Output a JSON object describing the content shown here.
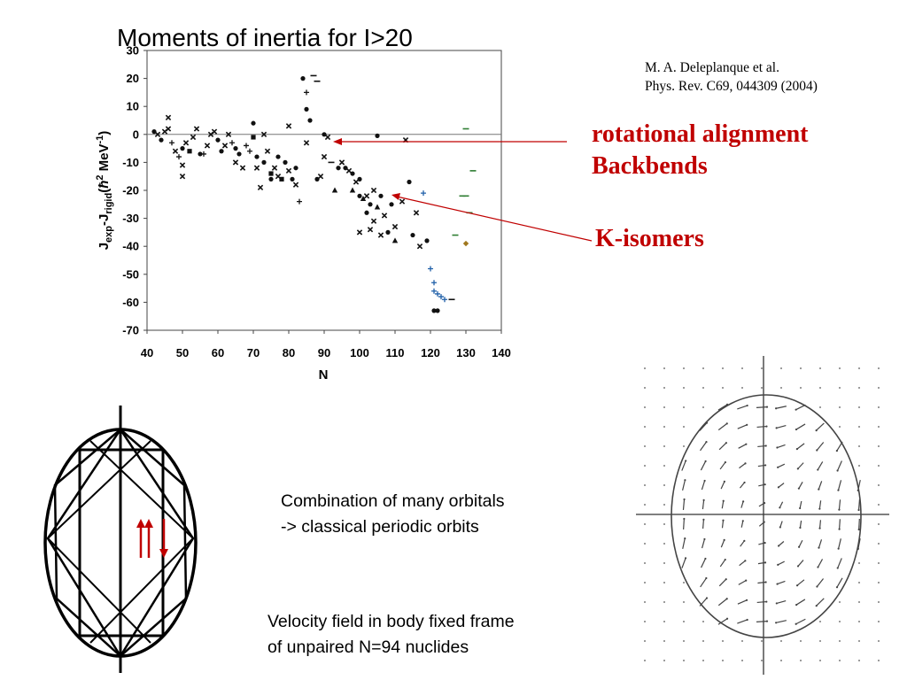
{
  "title": "Moments of inertia for I>20",
  "citation": {
    "line1": "M. A. Deleplanque et al.",
    "line2": "Phys. Rev. C69, 044309 (2004)"
  },
  "annotations": {
    "rotational_line1": "rotational alignment",
    "rotational_line2": "Backbends",
    "k_isomers": "K-isomers",
    "color": "#c00000"
  },
  "captions": {
    "orbits_line1": "Combination of many orbitals",
    "orbits_line2": "-> classical periodic orbits",
    "velocity_line1": "Velocity field in body fixed frame",
    "velocity_line2": "of unpaired N=94 nuclides"
  },
  "chart_data": {
    "type": "scatter",
    "xlabel": "N",
    "ylabel_parts": {
      "j": "J",
      "exp": "exp",
      "dash": "-J",
      "rigid": "rigid",
      "units_open": "(",
      "hbar": "ħ",
      "sup2": "2",
      "mev": " MeV",
      "sup_neg1": "-1",
      "units_close": ")"
    },
    "xlim": [
      40,
      140
    ],
    "ylim": [
      -70,
      30
    ],
    "xticks": [
      40,
      50,
      60,
      70,
      80,
      90,
      100,
      110,
      120,
      130,
      140
    ],
    "yticks": [
      30,
      20,
      10,
      0,
      -10,
      -20,
      -30,
      -40,
      -50,
      -60,
      -70
    ],
    "reference_line_y": 0,
    "points": [
      {
        "x": 42,
        "y": 1,
        "m": "dot"
      },
      {
        "x": 43,
        "y": 0,
        "m": "x"
      },
      {
        "x": 44,
        "y": -2,
        "m": "dot"
      },
      {
        "x": 45,
        "y": 1,
        "m": "x"
      },
      {
        "x": 46,
        "y": 6,
        "m": "x"
      },
      {
        "x": 46,
        "y": 2,
        "m": "x"
      },
      {
        "x": 47,
        "y": -3,
        "m": "plus"
      },
      {
        "x": 48,
        "y": -6,
        "m": "x"
      },
      {
        "x": 49,
        "y": -8,
        "m": "plus"
      },
      {
        "x": 50,
        "y": -5,
        "m": "dot"
      },
      {
        "x": 50,
        "y": -11,
        "m": "x"
      },
      {
        "x": 50,
        "y": -15,
        "m": "x"
      },
      {
        "x": 51,
        "y": -3,
        "m": "x"
      },
      {
        "x": 52,
        "y": -6,
        "m": "sq"
      },
      {
        "x": 53,
        "y": -1,
        "m": "x"
      },
      {
        "x": 54,
        "y": 2,
        "m": "x"
      },
      {
        "x": 55,
        "y": -7,
        "m": "dot"
      },
      {
        "x": 56,
        "y": -7,
        "m": "plus"
      },
      {
        "x": 57,
        "y": -4,
        "m": "x"
      },
      {
        "x": 58,
        "y": 0,
        "m": "x"
      },
      {
        "x": 59,
        "y": 1,
        "m": "x"
      },
      {
        "x": 60,
        "y": -2,
        "m": "dot"
      },
      {
        "x": 61,
        "y": -6,
        "m": "dot"
      },
      {
        "x": 62,
        "y": -4,
        "m": "x"
      },
      {
        "x": 63,
        "y": 0,
        "m": "x"
      },
      {
        "x": 64,
        "y": -3,
        "m": "plus"
      },
      {
        "x": 65,
        "y": -5,
        "m": "dot"
      },
      {
        "x": 65,
        "y": -10,
        "m": "x"
      },
      {
        "x": 66,
        "y": -7,
        "m": "dot"
      },
      {
        "x": 67,
        "y": -12,
        "m": "x"
      },
      {
        "x": 68,
        "y": -4,
        "m": "plus"
      },
      {
        "x": 69,
        "y": -6,
        "m": "plus"
      },
      {
        "x": 70,
        "y": 4,
        "m": "dot"
      },
      {
        "x": 70,
        "y": -1,
        "m": "sq"
      },
      {
        "x": 71,
        "y": -8,
        "m": "dot"
      },
      {
        "x": 71,
        "y": -12,
        "m": "x"
      },
      {
        "x": 72,
        "y": -19,
        "m": "x"
      },
      {
        "x": 73,
        "y": 0,
        "m": "x"
      },
      {
        "x": 73,
        "y": -10,
        "m": "dot"
      },
      {
        "x": 74,
        "y": -6,
        "m": "x"
      },
      {
        "x": 75,
        "y": -14,
        "m": "sq"
      },
      {
        "x": 75,
        "y": -16,
        "m": "dot"
      },
      {
        "x": 76,
        "y": -12,
        "m": "x"
      },
      {
        "x": 77,
        "y": -8,
        "m": "dot"
      },
      {
        "x": 77,
        "y": -15,
        "m": "x"
      },
      {
        "x": 78,
        "y": -16,
        "m": "sq"
      },
      {
        "x": 79,
        "y": -10,
        "m": "dot"
      },
      {
        "x": 80,
        "y": 3,
        "m": "x"
      },
      {
        "x": 80,
        "y": -13,
        "m": "x"
      },
      {
        "x": 81,
        "y": -16,
        "m": "dot"
      },
      {
        "x": 82,
        "y": -18,
        "m": "x"
      },
      {
        "x": 82,
        "y": -12,
        "m": "dot"
      },
      {
        "x": 83,
        "y": -24,
        "m": "plus"
      },
      {
        "x": 84,
        "y": 20,
        "m": "dot"
      },
      {
        "x": 85,
        "y": 15,
        "m": "plus"
      },
      {
        "x": 85,
        "y": 9,
        "m": "dot"
      },
      {
        "x": 85,
        "y": -3,
        "m": "x"
      },
      {
        "x": 86,
        "y": 5,
        "m": "dot"
      },
      {
        "x": 87,
        "y": 21,
        "m": "minus"
      },
      {
        "x": 88,
        "y": 19,
        "m": "minus"
      },
      {
        "x": 88,
        "y": -16,
        "m": "dot"
      },
      {
        "x": 89,
        "y": -15,
        "m": "x"
      },
      {
        "x": 90,
        "y": 0,
        "m": "dot"
      },
      {
        "x": 90,
        "y": -8,
        "m": "x"
      },
      {
        "x": 91,
        "y": -1,
        "m": "x"
      },
      {
        "x": 92,
        "y": -10,
        "m": "minus"
      },
      {
        "x": 93,
        "y": -20,
        "m": "tri"
      },
      {
        "x": 94,
        "y": -12,
        "m": "dot"
      },
      {
        "x": 95,
        "y": -10,
        "m": "x"
      },
      {
        "x": 96,
        "y": -12,
        "m": "dot"
      },
      {
        "x": 97,
        "y": -13,
        "m": "x"
      },
      {
        "x": 98,
        "y": -14,
        "m": "dot"
      },
      {
        "x": 98,
        "y": -20,
        "m": "tri"
      },
      {
        "x": 99,
        "y": -17,
        "m": "x"
      },
      {
        "x": 100,
        "y": -16,
        "m": "dot"
      },
      {
        "x": 100,
        "y": -22,
        "m": "dot"
      },
      {
        "x": 100,
        "y": -35,
        "m": "x"
      },
      {
        "x": 101,
        "y": -23,
        "m": "tri"
      },
      {
        "x": 102,
        "y": -22,
        "m": "x"
      },
      {
        "x": 102,
        "y": -28,
        "m": "dot"
      },
      {
        "x": 103,
        "y": -25,
        "m": "dot"
      },
      {
        "x": 103,
        "y": -34,
        "m": "x"
      },
      {
        "x": 104,
        "y": -20,
        "m": "x"
      },
      {
        "x": 104,
        "y": -31,
        "m": "x"
      },
      {
        "x": 105,
        "y": -26,
        "m": "tri"
      },
      {
        "x": 105,
        "y": -0.5,
        "m": "dot"
      },
      {
        "x": 106,
        "y": -22,
        "m": "dot"
      },
      {
        "x": 106,
        "y": -36,
        "m": "x"
      },
      {
        "x": 107,
        "y": -29,
        "m": "x"
      },
      {
        "x": 108,
        "y": -35,
        "m": "dot"
      },
      {
        "x": 109,
        "y": -25,
        "m": "dot"
      },
      {
        "x": 110,
        "y": -33,
        "m": "x"
      },
      {
        "x": 110,
        "y": -38,
        "m": "tri"
      },
      {
        "x": 112,
        "y": -24,
        "m": "x"
      },
      {
        "x": 113,
        "y": -2,
        "m": "x"
      },
      {
        "x": 114,
        "y": -17,
        "m": "dot"
      },
      {
        "x": 115,
        "y": -36,
        "m": "dot"
      },
      {
        "x": 116,
        "y": -28,
        "m": "x"
      },
      {
        "x": 117,
        "y": -40,
        "m": "x"
      },
      {
        "x": 118,
        "y": -21,
        "m": "plus"
      },
      {
        "x": 119,
        "y": -38,
        "m": "dot"
      },
      {
        "x": 120,
        "y": -48,
        "m": "plus"
      },
      {
        "x": 121,
        "y": -53,
        "m": "plus"
      },
      {
        "x": 121,
        "y": -56,
        "m": "plus"
      },
      {
        "x": 122,
        "y": -57,
        "m": "plus"
      },
      {
        "x": 123,
        "y": -58,
        "m": "plus"
      },
      {
        "x": 124,
        "y": -59,
        "m": "plus"
      },
      {
        "x": 121,
        "y": -63,
        "m": "dot"
      },
      {
        "x": 122,
        "y": -63,
        "m": "dot"
      },
      {
        "x": 126,
        "y": -59,
        "m": "minus"
      },
      {
        "x": 127,
        "y": -36,
        "m": "minus"
      },
      {
        "x": 129,
        "y": -22,
        "m": "minus"
      },
      {
        "x": 130,
        "y": -22,
        "m": "minus"
      },
      {
        "x": 130,
        "y": 2,
        "m": "minus"
      },
      {
        "x": 131,
        "y": -28,
        "m": "minus"
      },
      {
        "x": 132,
        "y": -13,
        "m": "minus"
      },
      {
        "x": 130,
        "y": -39,
        "m": "diamond"
      }
    ]
  }
}
